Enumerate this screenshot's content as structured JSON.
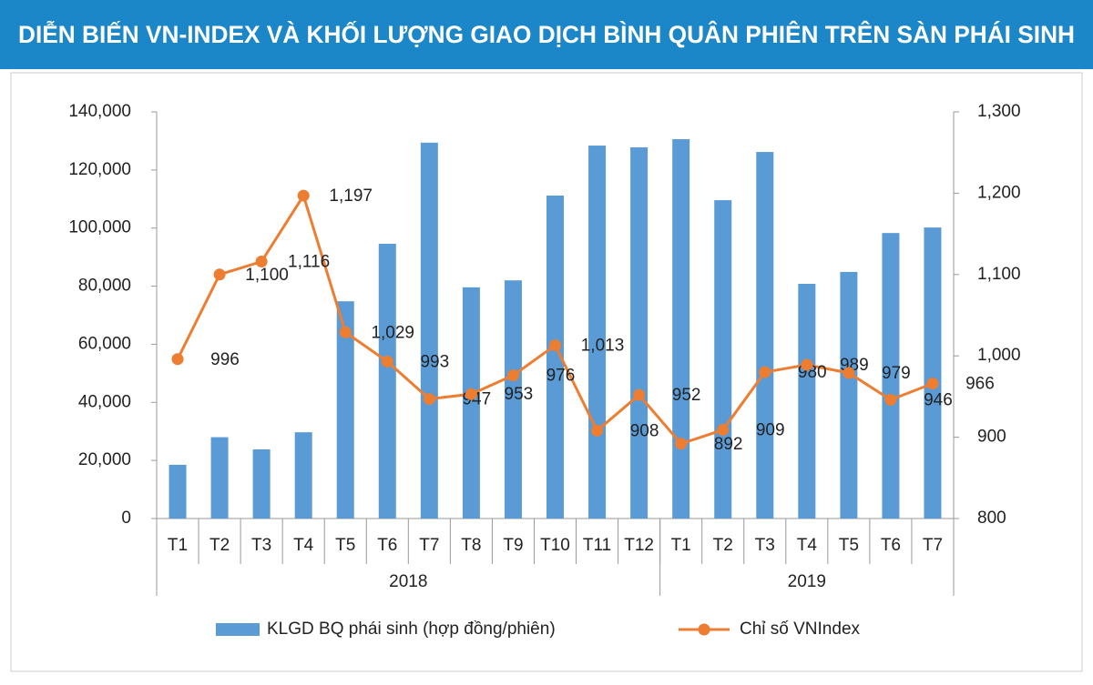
{
  "chart_data": {
    "type": "bar-line",
    "title": "DIỄN BIẾN VN-INDEX VÀ KHỐI LƯỢNG GIAO DỊCH BÌNH QUÂN PHIÊN TRÊN SÀN PHÁI SINH",
    "categories": [
      "T1",
      "T2",
      "T3",
      "T4",
      "T5",
      "T6",
      "T7",
      "T8",
      "T9",
      "T10",
      "T11",
      "T12",
      "T1",
      "T2",
      "T3",
      "T4",
      "T5",
      "T6",
      "T7"
    ],
    "category_groups": [
      {
        "name": "2018",
        "size": 12
      },
      {
        "name": "2019",
        "size": 7
      }
    ],
    "series": [
      {
        "name": "KLGD BQ phái sinh (hợp đồng/phiên)",
        "type": "bar",
        "color": "#5b9bd5",
        "values": [
          18500,
          28000,
          23800,
          29700,
          74800,
          94600,
          129400,
          79600,
          82000,
          111200,
          128400,
          127800,
          130600,
          109600,
          126200,
          80800,
          84900,
          98300,
          100200
        ]
      },
      {
        "name": "Chỉ số VNIndex",
        "type": "line",
        "axis": "y2",
        "color": "#ed7d31",
        "values": [
          996,
          1100,
          1116,
          1197,
          1029,
          993,
          947,
          953,
          976,
          1013,
          908,
          952,
          892,
          909,
          980,
          989,
          979,
          946,
          966
        ],
        "value_labels": [
          "996",
          "1,100",
          "1,116",
          "1,197",
          "1,029",
          "993",
          "947",
          "953",
          "976",
          "1,013",
          "908",
          "952",
          "892",
          "909",
          "980",
          "989",
          "979",
          "946",
          "966"
        ]
      }
    ],
    "ylim": [
      0,
      140000
    ],
    "yticks": [
      0,
      {
        "value": 20000,
        "label": "20,000"
      },
      {
        "value": 40000,
        "label": "40,000"
      },
      {
        "value": 60000,
        "label": "60,000"
      },
      {
        "value": 80000,
        "label": "80,000"
      },
      {
        "value": 100000,
        "label": "100,000"
      },
      {
        "value": 120000,
        "label": "120,000"
      },
      {
        "value": 140000,
        "label": "140,000"
      }
    ],
    "y2lim": [
      800,
      1300
    ],
    "y2ticks": [
      800,
      900,
      {
        "value": 1000,
        "label": "1,000"
      },
      {
        "value": 1100,
        "label": "1,100"
      },
      {
        "value": 1200,
        "label": "1,200"
      },
      {
        "value": 1300,
        "label": "1,300"
      }
    ],
    "legend": "bottom"
  }
}
